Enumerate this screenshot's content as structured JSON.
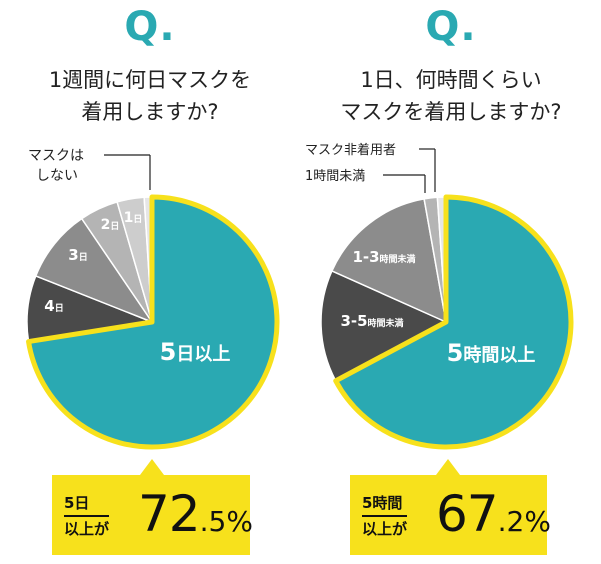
{
  "left": {
    "q_mark": "Q.",
    "question_lines": [
      "1週間に何日マスクを",
      "着用しますか?"
    ],
    "outside_label_lines": [
      "マスクは",
      "しない"
    ],
    "callout": {
      "label_line1": "5日",
      "label_line2": "以上が",
      "value_int": "72",
      "value_dec": ".5%"
    }
  },
  "right": {
    "q_mark": "Q.",
    "question_lines": [
      "1日、何時間くらい",
      "マスクを着用しますか?"
    ],
    "outside_labels": [
      "マスク非着用者",
      "1時間未満"
    ],
    "callout": {
      "label_line1": "5時間",
      "label_line2": "以上が",
      "value_int": "67",
      "value_dec": ".2%"
    }
  },
  "chart_data": [
    {
      "type": "pie",
      "title": "1週間に何日マスクを着用しますか?",
      "slices": [
        {
          "label": "5日以上",
          "value": 72.5,
          "color": "#2aa9b2"
        },
        {
          "label": "4日",
          "value": 8.5,
          "color": "#4a4a4a"
        },
        {
          "label": "3日",
          "value": 9.5,
          "color": "#8c8c8c"
        },
        {
          "label": "2日",
          "value": 5.0,
          "color": "#b4b4b4"
        },
        {
          "label": "1日",
          "value": 3.5,
          "color": "#cdcdcd"
        },
        {
          "label": "マスクはしない",
          "value": 1.0,
          "color": "#e6e6e6"
        }
      ],
      "highlight_color": "#f7e11c"
    },
    {
      "type": "pie",
      "title": "1日、何時間くらいマスクを着用しますか?",
      "slices": [
        {
          "label": "5時間以上",
          "value": 67.2,
          "color": "#2aa9b2"
        },
        {
          "label": "3-5時間未満",
          "value": 14.5,
          "color": "#4a4a4a"
        },
        {
          "label": "1-3時間未満",
          "value": 15.5,
          "color": "#8c8c8c"
        },
        {
          "label": "1時間未満",
          "value": 1.7,
          "color": "#b4b4b4"
        },
        {
          "label": "マスク非着用者",
          "value": 1.1,
          "color": "#e6e6e6"
        }
      ],
      "highlight_color": "#f7e11c"
    }
  ]
}
